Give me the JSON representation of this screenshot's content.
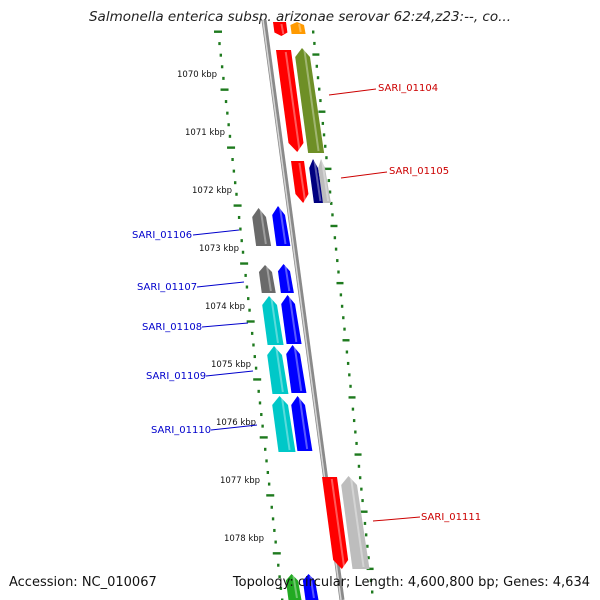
{
  "title": "Salmonella enterica subsp. arizonae serovar 62:z4,z23:--, co...",
  "footer": {
    "accession": "Accession: NC_010067",
    "stats": "Topology: circular; Length: 4,600,800 bp; Genes: 4,634"
  },
  "colors": {
    "backbone": "#8a8a8a",
    "ticks": "#1e7a1e",
    "red": "#ff0000",
    "olive": "#6e8f26",
    "navy": "#000080",
    "blue": "#0000ff",
    "gray": "#6a6a6a",
    "light_gray": "#bdbdbd",
    "cyan": "#00c8c8",
    "orange": "#ff9a00",
    "green": "#22aa22"
  },
  "ticks": [
    {
      "label": "1070 kbp"
    },
    {
      "label": "1071 kbp"
    },
    {
      "label": "1072 kbp"
    },
    {
      "label": "1073 kbp"
    },
    {
      "label": "1074 kbp"
    },
    {
      "label": "1075 kbp"
    },
    {
      "label": "1076 kbp"
    },
    {
      "label": "1077 kbp"
    },
    {
      "label": "1078 kbp"
    }
  ],
  "gene_labels": [
    {
      "name": "SARI_01104",
      "color": "#cc0000"
    },
    {
      "name": "SARI_01105",
      "color": "#cc0000"
    },
    {
      "name": "SARI_01106",
      "color": "#0000cc"
    },
    {
      "name": "SARI_01107",
      "color": "#0000cc"
    },
    {
      "name": "SARI_01108",
      "color": "#0000cc"
    },
    {
      "name": "SARI_01109",
      "color": "#0000cc"
    },
    {
      "name": "SARI_01110",
      "color": "#0000cc"
    },
    {
      "name": "SARI_01111",
      "color": "#cc0000"
    }
  ]
}
